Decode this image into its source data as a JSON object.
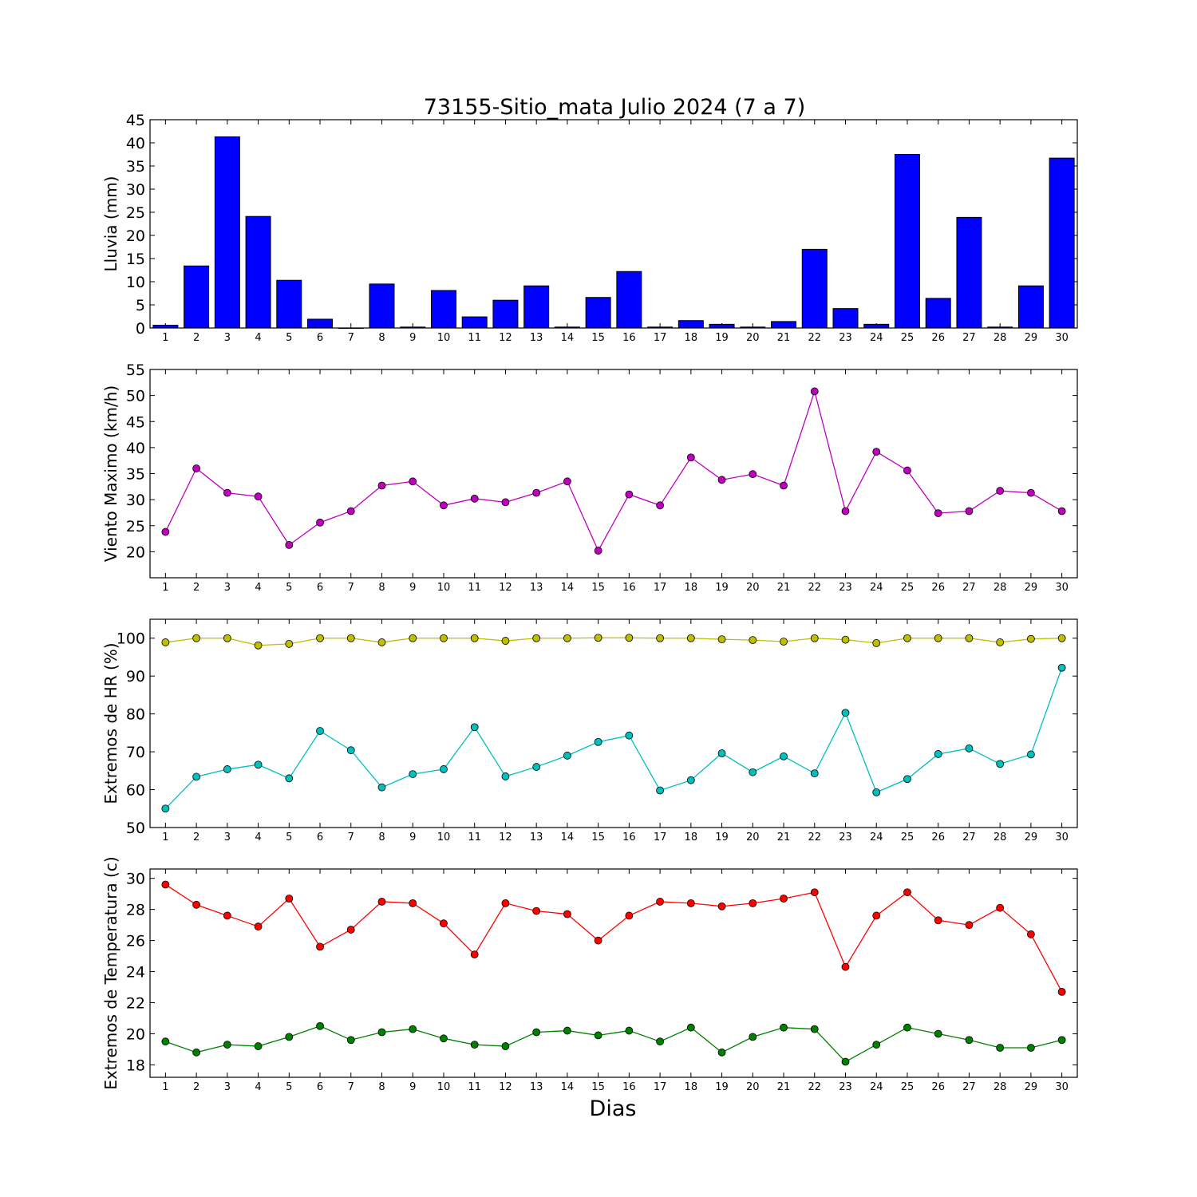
{
  "title": "73155-Sitio_mata Julio 2024  (7 a 7)",
  "xlabel": "Dias",
  "chart_data": [
    {
      "type": "bar",
      "ylabel": "Lluvia (mm)",
      "ylim": [
        0,
        45
      ],
      "yticks": [
        0,
        5,
        10,
        15,
        20,
        25,
        30,
        35,
        40,
        45
      ],
      "x": [
        1,
        2,
        3,
        4,
        5,
        6,
        7,
        8,
        9,
        10,
        11,
        12,
        13,
        14,
        15,
        16,
        17,
        18,
        19,
        20,
        21,
        22,
        23,
        24,
        25,
        26,
        27,
        28,
        29,
        30
      ],
      "series": [
        {
          "color": "#0000ff",
          "values": [
            0.6,
            13.4,
            41.3,
            24.1,
            10.3,
            1.9,
            0,
            9.5,
            0.2,
            8.1,
            2.4,
            6.0,
            9.1,
            0.2,
            6.6,
            12.2,
            0.2,
            1.6,
            0.8,
            0.2,
            1.4,
            17.0,
            4.2,
            0.8,
            37.5,
            6.4,
            23.9,
            0.2,
            9.1,
            36.7
          ]
        }
      ]
    },
    {
      "type": "line",
      "ylabel": "Viento Maximo (km/h)",
      "ylim": [
        15,
        55
      ],
      "yticks": [
        20,
        25,
        30,
        35,
        40,
        45,
        50,
        55
      ],
      "x": [
        1,
        2,
        3,
        4,
        5,
        6,
        7,
        8,
        9,
        10,
        11,
        12,
        13,
        14,
        15,
        16,
        17,
        18,
        19,
        20,
        21,
        22,
        23,
        24,
        25,
        26,
        27,
        28,
        29,
        30
      ],
      "series": [
        {
          "color": "#bf00bf",
          "values": [
            23.8,
            36.0,
            31.3,
            30.6,
            21.3,
            25.6,
            27.8,
            32.7,
            33.5,
            28.9,
            30.2,
            29.5,
            31.3,
            33.5,
            20.2,
            31.0,
            28.9,
            38.1,
            33.8,
            34.9,
            32.7,
            50.8,
            27.8,
            39.2,
            35.6,
            27.4,
            27.8,
            31.7,
            31.3,
            27.8
          ]
        }
      ]
    },
    {
      "type": "line",
      "ylabel": "Extremos de HR (%)",
      "ylim": [
        50,
        105
      ],
      "yticks": [
        50,
        60,
        70,
        80,
        90,
        100
      ],
      "x": [
        1,
        2,
        3,
        4,
        5,
        6,
        7,
        8,
        9,
        10,
        11,
        12,
        13,
        14,
        15,
        16,
        17,
        18,
        19,
        20,
        21,
        22,
        23,
        24,
        25,
        26,
        27,
        28,
        29,
        30
      ],
      "series": [
        {
          "color": "#bfbf00",
          "values": [
            98.9,
            100,
            100,
            98.1,
            98.5,
            100,
            100,
            98.9,
            100,
            100,
            100,
            99.3,
            100,
            100,
            100.1,
            100.1,
            100,
            100,
            99.7,
            99.5,
            99.1,
            100,
            99.6,
            98.7,
            100,
            100,
            100,
            98.9,
            99.8,
            100
          ]
        },
        {
          "color": "#00bfbf",
          "values": [
            55.0,
            63.4,
            65.4,
            66.6,
            63.0,
            75.5,
            70.4,
            60.6,
            64.1,
            65.4,
            76.5,
            63.5,
            66.0,
            69.0,
            72.6,
            74.3,
            59.8,
            62.5,
            69.6,
            64.6,
            68.8,
            64.3,
            80.3,
            59.3,
            62.8,
            69.4,
            70.9,
            66.8,
            69.3,
            92.2
          ]
        }
      ]
    },
    {
      "type": "line",
      "ylabel": "Extremos de Temperatura (c)",
      "ylim": [
        17.2,
        30.6
      ],
      "yticks": [
        18,
        20,
        22,
        24,
        26,
        28,
        30
      ],
      "x": [
        1,
        2,
        3,
        4,
        5,
        6,
        7,
        8,
        9,
        10,
        11,
        12,
        13,
        14,
        15,
        16,
        17,
        18,
        19,
        20,
        21,
        22,
        23,
        24,
        25,
        26,
        27,
        28,
        29,
        30
      ],
      "series": [
        {
          "color": "#ff0000",
          "values": [
            29.6,
            28.3,
            27.6,
            26.9,
            28.7,
            25.6,
            26.7,
            28.5,
            28.4,
            27.1,
            25.1,
            28.4,
            27.9,
            27.7,
            26.0,
            27.6,
            28.5,
            28.4,
            28.2,
            28.4,
            28.7,
            29.1,
            24.3,
            27.6,
            29.1,
            27.3,
            27.0,
            28.1,
            26.4,
            22.7
          ]
        },
        {
          "color": "#008000",
          "values": [
            19.5,
            18.8,
            19.3,
            19.2,
            19.8,
            20.5,
            19.6,
            20.1,
            20.3,
            19.7,
            19.3,
            19.2,
            20.1,
            20.2,
            19.9,
            20.2,
            19.5,
            20.4,
            18.8,
            19.8,
            20.4,
            20.3,
            18.2,
            19.3,
            20.4,
            20.0,
            19.6,
            19.1,
            19.1,
            19.6
          ]
        }
      ]
    }
  ]
}
